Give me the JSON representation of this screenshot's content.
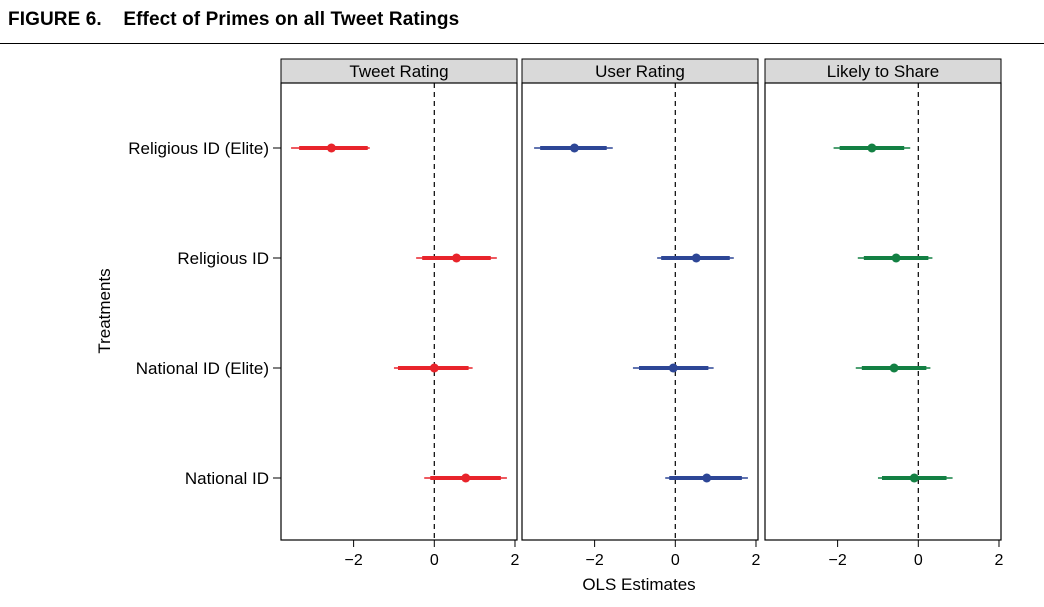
{
  "figure": {
    "label": "FIGURE 6.",
    "title": "Effect of Primes on all Tweet Ratings"
  },
  "chart_data": {
    "type": "forest",
    "ylabel": "Treatments",
    "xlabel": "OLS Estimates",
    "xlim": [
      -3.8,
      2.05
    ],
    "xticks": [
      -2,
      0,
      2
    ],
    "xtick_labels": [
      "−2",
      "0",
      "2"
    ],
    "reference_line": 0,
    "reference_style": "dashed",
    "grid": false,
    "categories": [
      "Religious ID (Elite)",
      "Religious ID",
      "National ID (Elite)",
      "National ID"
    ],
    "panels": [
      {
        "name": "Tweet Rating",
        "color": "#e8242b",
        "estimates": [
          -2.55,
          0.55,
          0.0,
          0.78
        ],
        "ci95": [
          [
            -3.55,
            -1.6
          ],
          [
            -0.45,
            1.55
          ],
          [
            -1.0,
            0.95
          ],
          [
            -0.25,
            1.8
          ]
        ],
        "ci90": [
          [
            -3.35,
            -1.65
          ],
          [
            -0.3,
            1.4
          ],
          [
            -0.9,
            0.85
          ],
          [
            -0.1,
            1.65
          ]
        ]
      },
      {
        "name": "User Rating",
        "color": "#2d4696",
        "estimates": [
          -2.5,
          0.52,
          -0.05,
          0.78
        ],
        "ci95": [
          [
            -3.5,
            -1.55
          ],
          [
            -0.45,
            1.45
          ],
          [
            -1.05,
            0.95
          ],
          [
            -0.25,
            1.8
          ]
        ],
        "ci90": [
          [
            -3.35,
            -1.7
          ],
          [
            -0.35,
            1.35
          ],
          [
            -0.9,
            0.82
          ],
          [
            -0.15,
            1.65
          ]
        ]
      },
      {
        "name": "Likely to Share",
        "color": "#138043",
        "estimates": [
          -1.15,
          -0.55,
          -0.6,
          -0.1
        ],
        "ci95": [
          [
            -2.1,
            -0.2
          ],
          [
            -1.5,
            0.35
          ],
          [
            -1.55,
            0.3
          ],
          [
            -1.0,
            0.85
          ]
        ],
        "ci90": [
          [
            -1.95,
            -0.35
          ],
          [
            -1.35,
            0.25
          ],
          [
            -1.4,
            0.2
          ],
          [
            -0.9,
            0.7
          ]
        ]
      }
    ]
  }
}
